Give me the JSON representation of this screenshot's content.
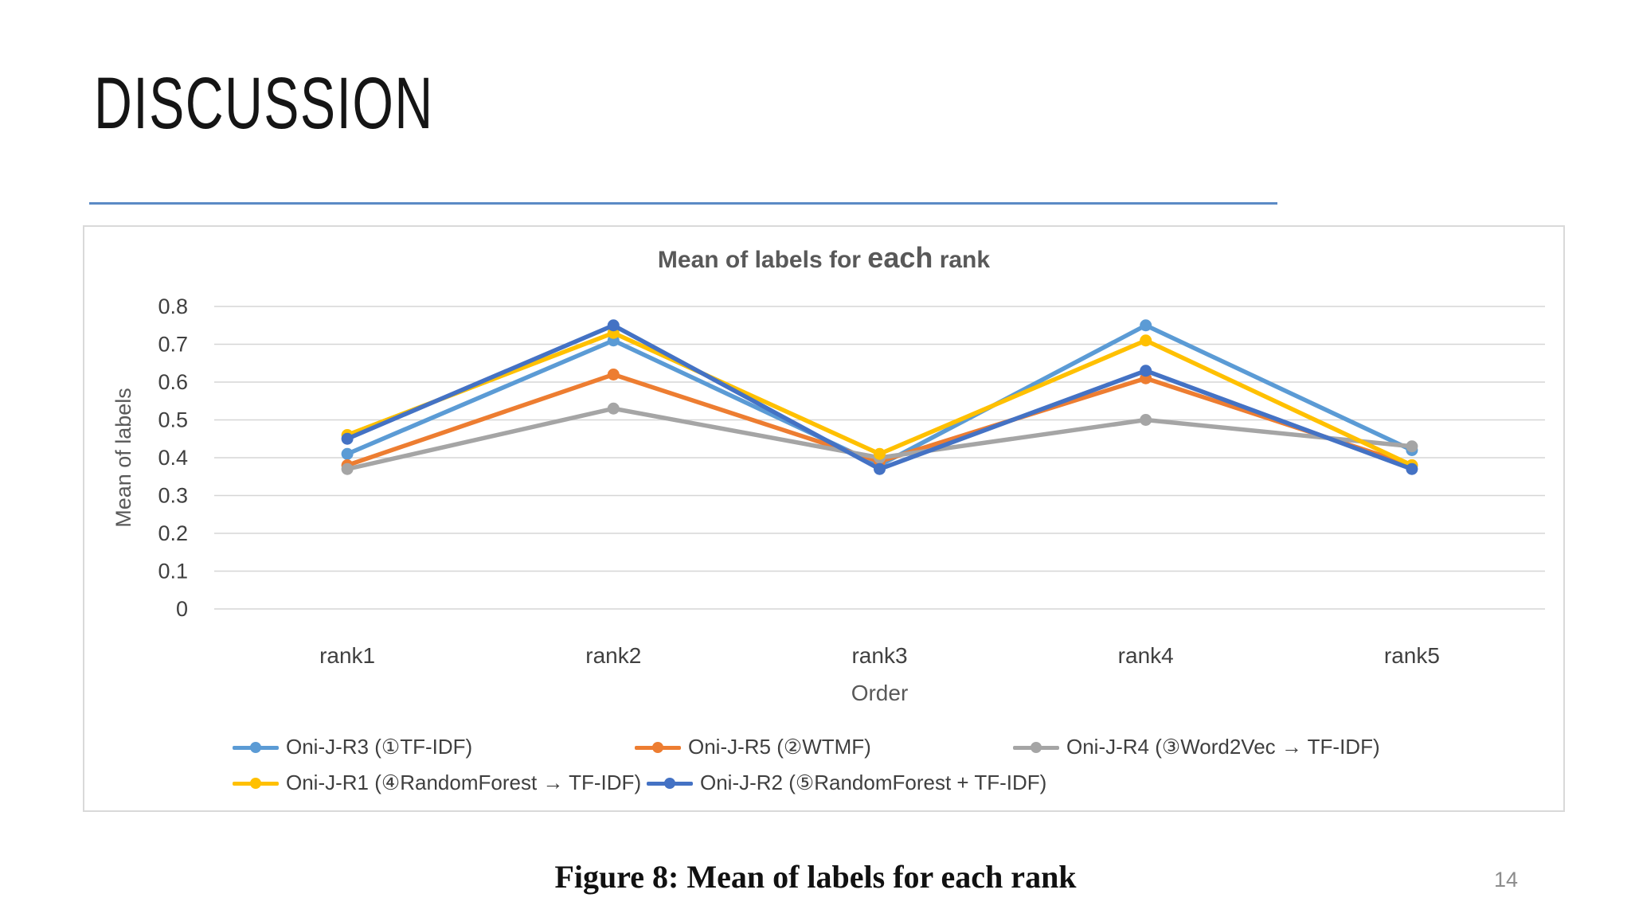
{
  "slide": {
    "title": "DISCUSSION",
    "page_number": "14",
    "caption": "Figure 8:  Mean of labels for each rank"
  },
  "colors": {
    "accent_rule": "#5b8ac5",
    "panel_border": "#d9d9d9",
    "gridline": "#d6d6d6",
    "chart_text": "#595959",
    "tick_text": "#404040"
  },
  "chart_data": {
    "type": "line",
    "title": "Mean of labels for each rank",
    "title_parts": {
      "prefix": "Mean of labels for ",
      "emph": "each",
      "suffix": " rank"
    },
    "xlabel": "Order",
    "ylabel": "Mean of labels",
    "categories": [
      "rank1",
      "rank2",
      "rank3",
      "rank4",
      "rank5"
    ],
    "ylim": [
      0,
      0.8
    ],
    "y_ticks": [
      "0",
      "0.1",
      "0.2",
      "0.3",
      "0.4",
      "0.5",
      "0.6",
      "0.7",
      "0.8"
    ],
    "grid": "horizontal",
    "legend_position": "bottom",
    "marker": "circle",
    "series": [
      {
        "name": "Oni-J-R3 (①TF-IDF)",
        "color": "#5B9BD5",
        "values": [
          0.41,
          0.71,
          0.38,
          0.75,
          0.42
        ]
      },
      {
        "name": "Oni-J-R5 (②WTMF)",
        "color": "#ED7D31",
        "values": [
          0.38,
          0.62,
          0.39,
          0.61,
          0.38
        ]
      },
      {
        "name": "Oni-J-R4 (③Word2Vec → TF-IDF)",
        "color": "#A5A5A5",
        "values": [
          0.37,
          0.53,
          0.4,
          0.5,
          0.43
        ]
      },
      {
        "name": "Oni-J-R1 (④RandomForest → TF-IDF)",
        "color": "#FFC000",
        "values": [
          0.46,
          0.73,
          0.41,
          0.71,
          0.38
        ]
      },
      {
        "name": "Oni-J-R2 (⑤RandomForest + TF-IDF)",
        "color": "#4472C4",
        "values": [
          0.45,
          0.75,
          0.37,
          0.63,
          0.37
        ]
      }
    ]
  }
}
